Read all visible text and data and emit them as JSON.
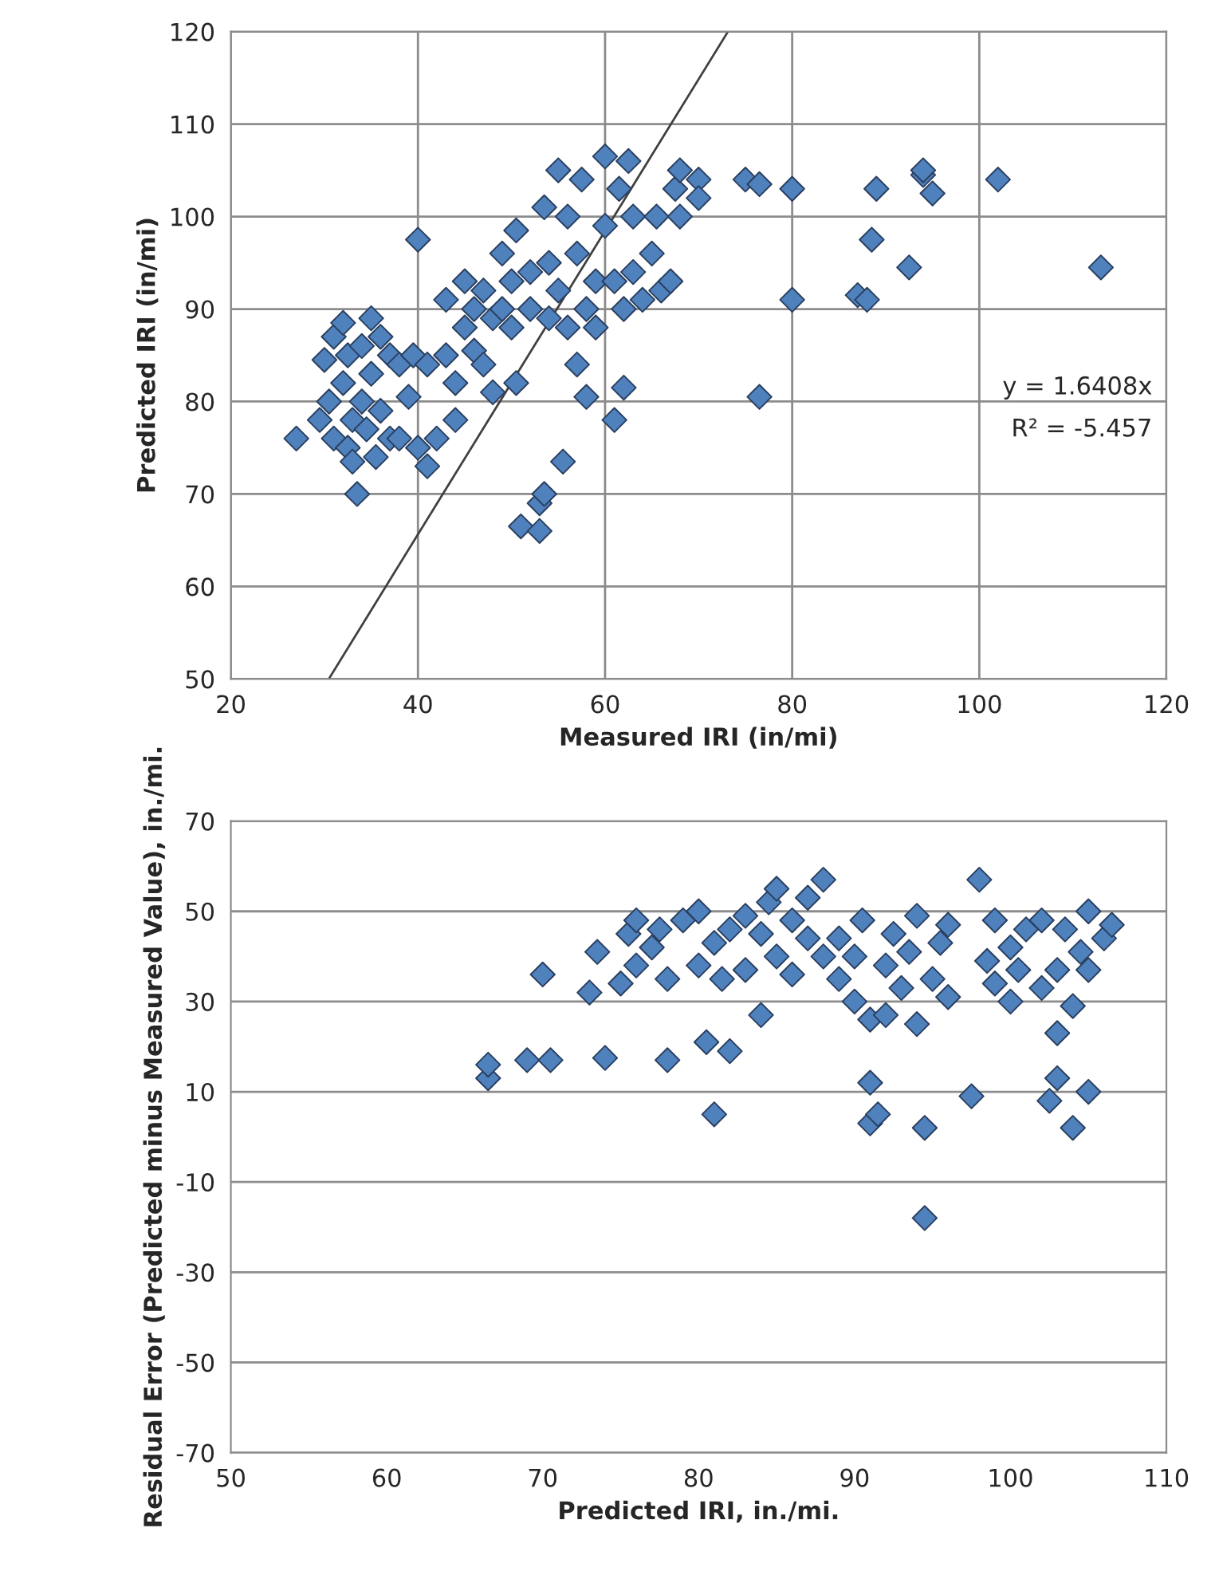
{
  "chart_data": [
    {
      "type": "scatter",
      "xlabel": "Measured IRI (in/mi)",
      "ylabel": "Predicted IRI (in/mi)",
      "xlim": [
        20,
        120
      ],
      "ylim": [
        50,
        120
      ],
      "xticks": [
        20,
        40,
        60,
        80,
        100,
        120
      ],
      "yticks": [
        50,
        60,
        70,
        80,
        90,
        100,
        110,
        120
      ],
      "grid": true,
      "series": [
        {
          "marker": "diamond",
          "color": "#4f81bd",
          "x": [
            27,
            29.5,
            30,
            30.5,
            31,
            31,
            32,
            32,
            32.5,
            32.5,
            33,
            33,
            33.5,
            34,
            34,
            34.5,
            35,
            35,
            35.5,
            36,
            36,
            37,
            37,
            38,
            38,
            39,
            39.5,
            40,
            40,
            41,
            41,
            42,
            43,
            43,
            44,
            44,
            45,
            45,
            46,
            46,
            47,
            47,
            48,
            48,
            49,
            49,
            50,
            50,
            50.5,
            50.5,
            51,
            52,
            52,
            53,
            53,
            53.5,
            53.5,
            54,
            54,
            55,
            55,
            55.5,
            56,
            56,
            57,
            57,
            57.5,
            58,
            58,
            59,
            59,
            60,
            60,
            61,
            61,
            61.5,
            62,
            62,
            62.5,
            63,
            63,
            64,
            65,
            65.5,
            66,
            67,
            67.5,
            68,
            68,
            70,
            70,
            75,
            76.5,
            76.5,
            80,
            80,
            87,
            88,
            88.5,
            89,
            92.5,
            94,
            94,
            95,
            102,
            113
          ],
          "values": [
            76,
            78,
            84.5,
            80,
            76,
            87,
            88.5,
            82,
            85,
            75,
            78,
            73.5,
            70,
            86,
            80,
            77,
            89,
            83,
            74,
            87,
            79,
            85,
            76,
            84,
            76,
            80.5,
            85,
            97.5,
            75,
            84,
            73,
            76,
            91,
            85,
            82,
            78,
            93,
            88,
            90,
            85.5,
            92,
            84,
            89,
            81,
            96,
            90,
            93,
            88,
            98.5,
            82,
            66.5,
            90,
            94,
            69,
            66,
            101,
            70,
            95,
            89,
            105,
            92,
            73.5,
            100,
            88,
            96,
            84,
            104,
            90,
            80.5,
            93,
            88,
            106.5,
            99,
            78,
            93,
            103,
            90,
            81.5,
            106,
            100,
            94,
            91,
            96,
            100,
            92,
            93,
            103,
            100,
            105,
            104,
            102,
            104,
            103.5,
            80.5,
            103,
            91,
            91.5,
            91,
            97.5,
            103,
            94.5,
            104.5,
            105,
            102.5,
            104,
            94.5
          ]
        },
        {
          "type": "line",
          "marker": "none",
          "color": "#404040",
          "x": [
            30.47,
            73.14
          ],
          "values": [
            50,
            120
          ]
        }
      ],
      "annotations": [
        "y = 1.6408x",
        "R² = -5.457"
      ]
    },
    {
      "type": "scatter",
      "xlabel": "Predicted IRI, in./mi.",
      "ylabel": "Residual Error (Predicted minus Measured Value), in./mi.",
      "xlim": [
        50,
        110
      ],
      "ylim": [
        -70,
        70
      ],
      "xticks": [
        50,
        60,
        70,
        80,
        90,
        100,
        110
      ],
      "yticks": [
        -70,
        -50,
        -30,
        -10,
        10,
        30,
        50,
        70
      ],
      "grid": "y",
      "marker": "diamond",
      "series": [
        {
          "color": "#4f81bd",
          "x": [
            66.5,
            66.5,
            69,
            70,
            70.5,
            73,
            73.5,
            74,
            75,
            75.5,
            76,
            76,
            77,
            77.5,
            78,
            78,
            79,
            80,
            80,
            80.5,
            81,
            81,
            81.5,
            82,
            82,
            83,
            83,
            84,
            84,
            84.5,
            85,
            85,
            86,
            86,
            87,
            87,
            88,
            88,
            89,
            89,
            90,
            90,
            90.5,
            91,
            91,
            91,
            91.5,
            92,
            92,
            92.5,
            93,
            93.5,
            94,
            94,
            94.5,
            94.5,
            95,
            95.5,
            96,
            96,
            97.5,
            98,
            98.5,
            99,
            99,
            100,
            100,
            100.5,
            101,
            102,
            102,
            102.5,
            103,
            103,
            103,
            103.5,
            104,
            104,
            104.5,
            105,
            105,
            105,
            106,
            106.5
          ],
          "values": [
            13,
            16,
            17,
            36,
            17,
            32,
            41,
            17.5,
            34,
            45,
            48,
            38,
            42,
            46,
            17,
            35,
            48,
            50,
            38,
            21,
            5,
            43,
            35,
            19,
            46,
            49,
            37,
            45,
            27,
            52,
            55,
            40,
            48,
            36,
            53,
            44,
            57,
            40,
            35,
            44,
            30,
            40,
            48,
            26,
            12,
            3,
            5,
            38,
            27,
            45,
            33,
            41,
            25,
            49,
            2,
            -18,
            35,
            43,
            31,
            47,
            9,
            57,
            39,
            34,
            48,
            30,
            42,
            37,
            46,
            33,
            48,
            8,
            23,
            37,
            13,
            46,
            29,
            2,
            41,
            10,
            37,
            50,
            44,
            47
          ]
        }
      ]
    }
  ]
}
